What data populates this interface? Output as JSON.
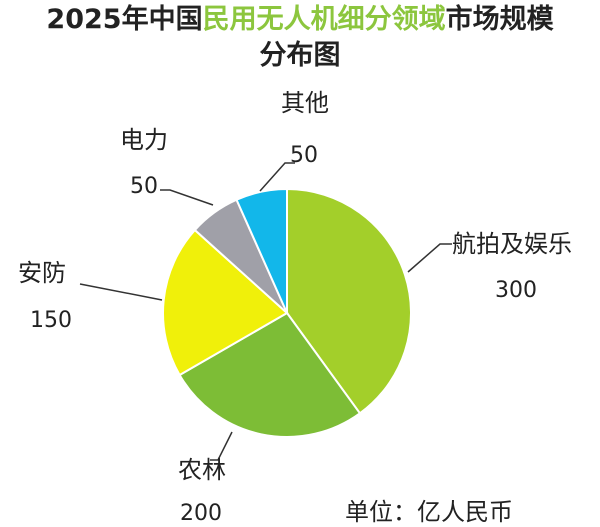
{
  "title": {
    "line1_part1": "2025年中国",
    "line1_part2": "民用无人机细分领域",
    "line1_part3": "市场规模",
    "line2": "分布图"
  },
  "unit_note": "单位：亿人民币",
  "colors": {
    "title_highlight": "#8cc63e"
  },
  "chart_data": {
    "type": "pie",
    "title": "2025年中国民用无人机细分领域市场规模分布图",
    "unit": "亿人民币",
    "slices": [
      {
        "label": "航拍及娱乐",
        "value": 300,
        "color": "#a3cf2a"
      },
      {
        "label": "农林",
        "value": 200,
        "color": "#7dbd36"
      },
      {
        "label": "安防",
        "value": 150,
        "color": "#f0f00a"
      },
      {
        "label": "电力",
        "value": 50,
        "color": "#a0a0a8"
      },
      {
        "label": "其他",
        "value": 50,
        "color": "#12b7ea"
      }
    ]
  }
}
